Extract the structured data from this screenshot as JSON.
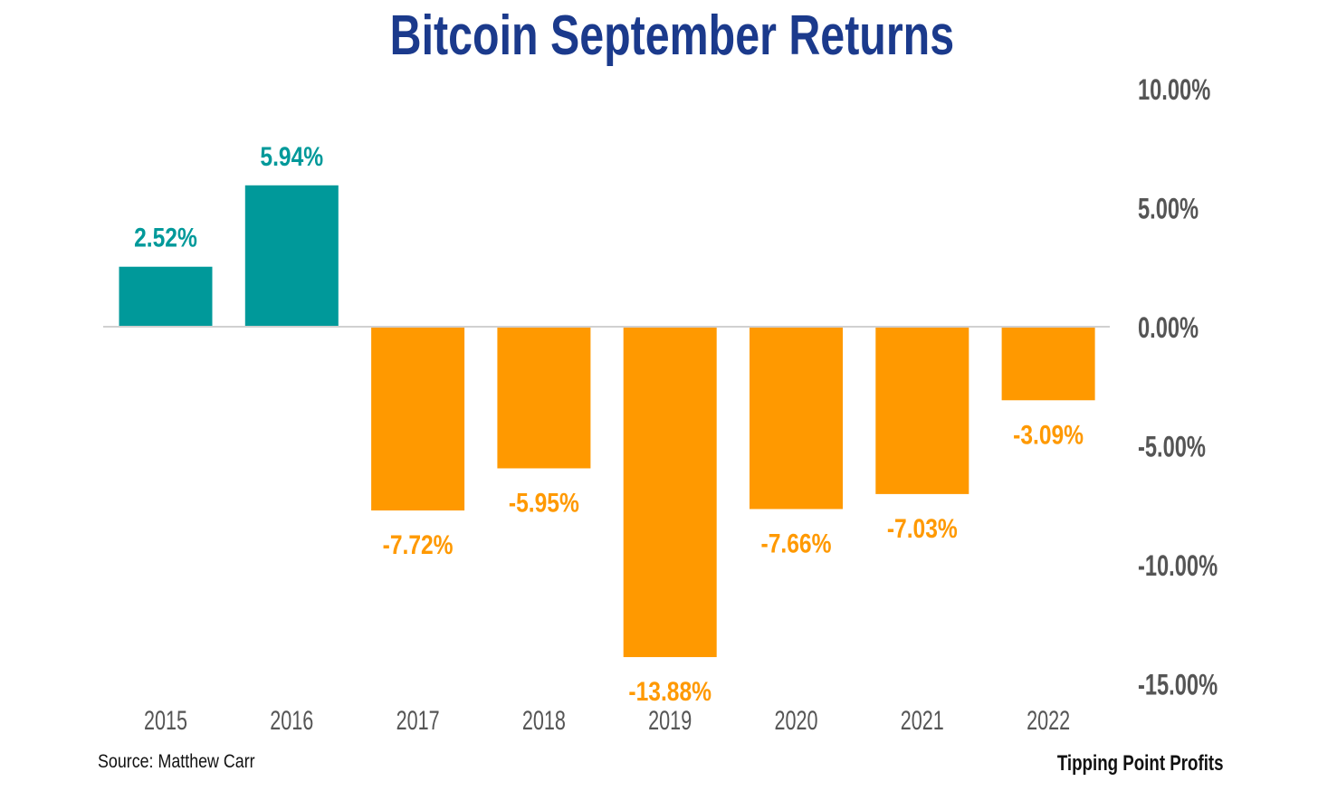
{
  "chart_data": {
    "type": "bar",
    "title": "Bitcoin September Returns",
    "categories": [
      "2015",
      "2016",
      "2017",
      "2018",
      "2019",
      "2020",
      "2021",
      "2022"
    ],
    "values": [
      2.52,
      5.94,
      -7.72,
      -5.95,
      -13.88,
      -7.66,
      -7.03,
      -3.09
    ],
    "data_labels": [
      "2.52%",
      "5.94%",
      "-7.72%",
      "-5.95%",
      "-13.88%",
      "-7.66%",
      "-7.03%",
      "-3.09%"
    ],
    "y_ticks": [
      10,
      5,
      0,
      -5,
      -10,
      -15
    ],
    "y_tick_labels": [
      "10.00%",
      "5.00%",
      "0.00%",
      "-5.00%",
      "-10.00%",
      "-15.00%"
    ],
    "ylim": [
      -15,
      10
    ],
    "y_axis_side": "right",
    "grid": false,
    "colors": {
      "positive": "#00999a",
      "negative": "#ff9900",
      "title": "#1b3a8c",
      "axis": "#d0d0d0"
    }
  },
  "footer": {
    "source": "Source: Matthew Carr",
    "brand": "Tipping Point Profits"
  }
}
